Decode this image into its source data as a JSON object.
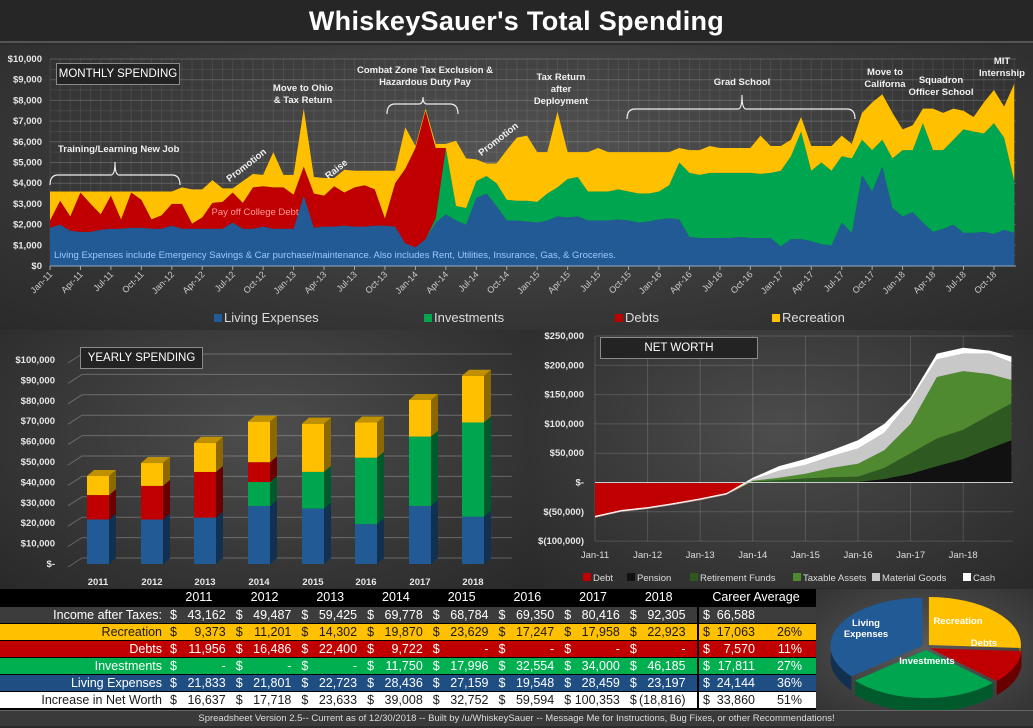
{
  "title": "WhiskeySauer's Total Spending",
  "colors": {
    "living": "#215a95",
    "investments": "#00a550",
    "debts": "#c00000",
    "recreation": "#ffc000"
  },
  "chart_data": [
    {
      "type": "area",
      "title": "MONTHLY SPENDING",
      "units": "thousands of dollars",
      "x_start": "Jan-11",
      "x_end": "Dec-18",
      "x_tick_labels": [
        "Jan-11",
        "Apr-11",
        "Jul-11",
        "Oct-11",
        "Jan-12",
        "Apr-12",
        "Jul-12",
        "Oct-12",
        "Jan-13",
        "Apr-13",
        "Jul-13",
        "Oct-13",
        "Jan-14",
        "Apr-14",
        "Jul-14",
        "Oct-14",
        "Jan-15",
        "Apr-15",
        "Jul-15",
        "Oct-15",
        "Jan-16",
        "Apr-16",
        "Jul-16",
        "Oct-16",
        "Jan-17",
        "Apr-17",
        "Jul-17",
        "Oct-17",
        "Jan-18",
        "Apr-18",
        "Jul-18",
        "Oct-18"
      ],
      "y_tick_labels": [
        "$0",
        "$1,000",
        "$2,000",
        "$3,000",
        "$4,000",
        "$5,000",
        "$6,000",
        "$7,000",
        "$8,000",
        "$9,000",
        "$10,000"
      ],
      "ylim": [
        0,
        10000
      ],
      "grid": true,
      "series": [
        {
          "name": "Living Expenses",
          "color": "#215a95",
          "values": [
            1.85,
            2.0,
            1.7,
            1.65,
            1.65,
            1.75,
            1.8,
            1.8,
            1.85,
            1.85,
            1.8,
            1.8,
            1.95,
            1.8,
            1.8,
            1.8,
            1.8,
            1.8,
            2.1,
            1.8,
            1.8,
            1.9,
            1.8,
            1.8,
            1.8,
            3.4,
            1.85,
            1.9,
            1.9,
            1.95,
            1.9,
            1.9,
            1.95,
            1.95,
            1.9,
            1.1,
            0.9,
            1.3,
            2.1,
            2.5,
            2.2,
            2.0,
            3.3,
            3.5,
            2.9,
            2.2,
            2.2,
            2.15,
            2.1,
            2.2,
            2.4,
            2.35,
            2.4,
            2.2,
            2.2,
            2.2,
            2.25,
            2.2,
            2.1,
            2.15,
            2.25,
            2.3,
            2.25,
            1.4,
            1.35,
            1.35,
            1.35,
            1.35,
            1.4,
            1.35,
            1.35,
            1.35,
            0.95,
            1.3,
            1.3,
            1.2,
            1.05,
            1.0,
            2.1,
            1.6,
            4.4,
            3.6,
            4.8,
            2.8,
            2.4,
            2.6,
            2.1,
            1.65,
            1.8,
            2.0,
            1.6,
            1.6,
            1.65,
            1.55,
            1.75,
            1.6
          ]
        },
        {
          "name": "Investments",
          "color": "#00a550",
          "values": [
            0,
            0,
            0,
            0,
            0,
            0,
            0,
            0,
            0,
            0,
            0,
            0,
            0,
            0,
            0,
            0,
            0,
            0,
            0,
            0,
            0,
            0,
            0,
            0,
            0,
            0,
            0,
            0,
            0,
            0,
            0,
            0,
            0,
            0,
            0,
            0,
            0,
            0,
            0.2,
            3.2,
            0.7,
            0.8,
            0.8,
            0.85,
            1.1,
            1.0,
            0.95,
            1.0,
            1.0,
            1.3,
            1.4,
            1.85,
            1.9,
            1.4,
            1.4,
            1.4,
            1.45,
            1.4,
            1.4,
            1.35,
            1.35,
            1.6,
            2.75,
            3.1,
            3.05,
            3.15,
            3.15,
            3.15,
            3.1,
            3.15,
            3.1,
            3.15,
            3.65,
            4.0,
            5.2,
            3.4,
            3.95,
            3.6,
            3.2,
            3.6,
            1.7,
            2.0,
            1.3,
            2.4,
            3.2,
            3.0,
            4.8,
            3.95,
            3.8,
            4.1,
            5.0,
            4.9,
            4.75,
            5.35,
            4.45,
            2.5
          ]
        },
        {
          "name": "Debts",
          "color": "#c00000",
          "values": [
            0.35,
            1.15,
            0.7,
            1.9,
            1.35,
            0.75,
            1.6,
            0.45,
            1.7,
            1.35,
            0.45,
            0.65,
            1.05,
            1.2,
            0.25,
            0.55,
            1.25,
            1.3,
            1.45,
            1.25,
            2.0,
            1.95,
            2.0,
            2.0,
            1.65,
            1.4,
            1.65,
            1.5,
            1.95,
            1.6,
            1.9,
            2.0,
            1.75,
            0.35,
            2.1,
            3.6,
            4.8,
            6.2,
            3.4,
            0,
            0,
            0,
            0,
            0,
            0,
            0,
            0,
            0,
            0,
            0,
            0,
            0,
            0,
            0,
            0,
            0,
            0,
            0,
            0,
            0,
            0,
            0,
            0,
            0,
            0,
            0,
            0,
            0,
            0,
            0,
            0,
            0,
            0,
            0,
            0,
            0,
            0,
            0,
            0,
            0,
            0,
            0,
            0,
            0,
            0,
            0,
            0,
            0,
            0,
            0,
            0,
            0,
            0,
            0,
            0,
            0
          ]
        },
        {
          "name": "Recreation",
          "color": "#ffc000",
          "values": [
            1.4,
            0.45,
            1.2,
            0.05,
            0.6,
            1.1,
            0.2,
            1.35,
            0.05,
            0.4,
            1.35,
            1.15,
            0.6,
            0.8,
            1.65,
            1.35,
            1.1,
            0.65,
            0.2,
            1.05,
            0.65,
            0.55,
            1.7,
            0.6,
            0.95,
            2.8,
            0.8,
            0.85,
            0.4,
            1.1,
            0.8,
            0.7,
            0.9,
            2.3,
            0.6,
            2.0,
            0.1,
            0.1,
            0.2,
            0.2,
            3.15,
            2.4,
            1.05,
            0.6,
            0.95,
            2.4,
            3.05,
            3.15,
            2.4,
            2.0,
            3.65,
            1.3,
            1.2,
            1.9,
            2.1,
            1.9,
            1.8,
            1.9,
            2.0,
            2.0,
            1.9,
            1.6,
            0.7,
            1.1,
            1.2,
            1.3,
            1.2,
            1.2,
            1.2,
            1.2,
            1.85,
            1.3,
            1.2,
            0.8,
            0.7,
            1.2,
            0.8,
            1.2,
            1.0,
            0.7,
            1.3,
            2.3,
            2.2,
            2.2,
            1.0,
            1.2,
            0.7,
            2.0,
            1.8,
            1.5,
            0.9,
            0.7,
            1.5,
            1.6,
            1.5,
            4.7
          ]
        }
      ],
      "annotations": {
        "training": "Training/Learning New Job",
        "promotion1": "Promotion",
        "college_debt": "Pay off College Debt",
        "ohio_1": "Move to Ohio",
        "ohio_2": "& Tax Return",
        "raise": "Raise",
        "combat_1": "Combat Zone Tax Exclusion &",
        "combat_2": "Hazardous Duty Pay",
        "promotion2": "Promotion",
        "taxret_1": "Tax Return",
        "taxret_2": "after",
        "taxret_3": "Deployment",
        "grad": "Grad School",
        "calif_1": "Move to",
        "calif_2": "Californa",
        "sos_1": "Squadron",
        "sos_2": "Officer School",
        "mit_1": "MIT",
        "mit_2": "Internship"
      },
      "note": "Living Expenses include Emergency Savings & Car purchase/maintenance.  Also includes Rent, Utilities, Insurance, Gas, & Groceries.",
      "legend": [
        "Living Expenses",
        "Investments",
        "Debts",
        "Recreation"
      ]
    },
    {
      "type": "bar",
      "title": "YEARLY SPENDING",
      "stacked": true,
      "categories": [
        "2011",
        "2012",
        "2013",
        "2014",
        "2015",
        "2016",
        "2017",
        "2018"
      ],
      "y_tick_labels": [
        "$-",
        "$10,000",
        "$20,000",
        "$30,000",
        "$40,000",
        "$50,000",
        "$60,000",
        "$70,000",
        "$80,000",
        "$90,000",
        "$100,000"
      ],
      "ylim": [
        0,
        100000
      ],
      "series": [
        {
          "name": "Living Expenses",
          "color": "#215a95",
          "values": [
            21833,
            21801,
            22723,
            28436,
            27159,
            19548,
            28459,
            23197
          ]
        },
        {
          "name": "Investments",
          "color": "#00a550",
          "values": [
            0,
            0,
            0,
            11750,
            17996,
            32554,
            34000,
            46185
          ]
        },
        {
          "name": "Debts",
          "color": "#c00000",
          "values": [
            11956,
            16486,
            22400,
            9722,
            0,
            0,
            0,
            0
          ]
        },
        {
          "name": "Recreation",
          "color": "#ffc000",
          "values": [
            9373,
            11201,
            14302,
            19870,
            23629,
            17247,
            17958,
            22923
          ]
        }
      ]
    },
    {
      "type": "area",
      "title": "NET WORTH",
      "units": "thousands of dollars",
      "x": [
        "Jan-11",
        "Jul-11",
        "Jan-12",
        "Jul-12",
        "Jan-13",
        "Jul-13",
        "Jan-14",
        "Jul-14",
        "Jan-15",
        "Jul-15",
        "Jan-16",
        "Jul-16",
        "Jan-17",
        "Jul-17",
        "Jan-18",
        "Jul-18",
        "Dec-18"
      ],
      "x_tick_labels": [
        "Jan-11",
        "Jan-12",
        "Jan-13",
        "Jan-14",
        "Jan-15",
        "Jan-16",
        "Jan-17",
        "Jan-18"
      ],
      "y_tick_labels": [
        "$(100,000)",
        "$(50,000)",
        "$-",
        "$50,000",
        "$100,000",
        "$150,000",
        "$200,000",
        "$250,000"
      ],
      "ylim": [
        -100000,
        250000
      ],
      "series": [
        {
          "name": "Debt",
          "color": "#c00000",
          "values": [
            -60,
            -50,
            -45,
            -38,
            -30,
            -21,
            0,
            0,
            0,
            0,
            0,
            0,
            0,
            0,
            0,
            0,
            0
          ]
        },
        {
          "name": "Pension",
          "color": "#111111",
          "values": [
            0,
            0,
            0,
            0,
            0,
            0,
            0,
            0,
            0,
            0,
            1,
            6,
            15,
            28,
            40,
            58,
            72
          ]
        },
        {
          "name": "Retirement Funds",
          "color": "#2e5a22",
          "values": [
            0,
            0,
            0,
            0,
            0,
            0,
            2,
            4,
            7,
            9,
            9,
            19,
            35,
            47,
            50,
            57,
            63
          ]
        },
        {
          "name": "Taxable Assets",
          "color": "#4f8a30",
          "values": [
            0,
            0,
            0,
            0,
            0,
            0,
            1,
            4,
            8,
            16,
            22,
            30,
            50,
            105,
            100,
            70,
            40
          ]
        },
        {
          "name": "Material Goods",
          "color": "#c8c8c8",
          "values": [
            1,
            1,
            1,
            1,
            1,
            1,
            2,
            12,
            15,
            20,
            26,
            30,
            40,
            30,
            30,
            35,
            30
          ]
        },
        {
          "name": "Cash",
          "color": "#ffffff",
          "values": [
            2,
            2,
            2,
            2,
            2,
            2,
            3,
            8,
            10,
            10,
            14,
            15,
            5,
            10,
            10,
            5,
            10
          ]
        }
      ]
    },
    {
      "type": "pie",
      "title": "Career Average",
      "slices": [
        {
          "name": "Recreation",
          "value": 26,
          "color": "#ffc000",
          "label": "Recreation"
        },
        {
          "name": "Debts",
          "value": 11,
          "color": "#c00000",
          "label": "Debts"
        },
        {
          "name": "Investments",
          "value": 27,
          "color": "#00a550",
          "label": "Investments"
        },
        {
          "name": "Living Expenses",
          "value": 36,
          "color": "#215a95",
          "label_1": "Living",
          "label_2": "Expenses"
        }
      ]
    }
  ],
  "table": {
    "headers": [
      "2011",
      "2012",
      "2013",
      "2014",
      "2015",
      "2016",
      "2017",
      "2018"
    ],
    "career_header": "Career Average",
    "currency": "$",
    "rows": [
      {
        "label": "Income after Taxes:",
        "values": [
          "43,162",
          "49,487",
          "59,425",
          "69,778",
          "68,784",
          "69,350",
          "80,416",
          "92,305"
        ],
        "avg": "66,588",
        "pct": "",
        "bg": "#3c3c3c",
        "fg": "#ffffff"
      },
      {
        "label": "Recreation",
        "values": [
          "9,373",
          "11,201",
          "14,302",
          "19,870",
          "23,629",
          "17,247",
          "17,958",
          "22,923"
        ],
        "avg": "17,063",
        "pct": "26%",
        "bg": "#ffc000",
        "fg": "#1a1a1a"
      },
      {
        "label": "Debts",
        "values": [
          "11,956",
          "16,486",
          "22,400",
          "9,722",
          "-",
          "-",
          "-",
          "-"
        ],
        "avg": "7,570",
        "pct": "11%",
        "bg": "#c00000",
        "fg": "#ffffff"
      },
      {
        "label": "Investments",
        "values": [
          "-",
          "-",
          "-",
          "11,750",
          "17,996",
          "32,554",
          "34,000",
          "46,185"
        ],
        "avg": "17,811",
        "pct": "27%",
        "bg": "#00b050",
        "fg": "#ffffff"
      },
      {
        "label": "Living Expenses",
        "values": [
          "21,833",
          "21,801",
          "22,723",
          "28,436",
          "27,159",
          "19,548",
          "28,459",
          "23,197"
        ],
        "avg": "24,144",
        "pct": "36%",
        "bg": "#1f4e82",
        "fg": "#ffffff"
      },
      {
        "label": "Increase in Net Worth",
        "values": [
          "16,637",
          "17,718",
          "23,633",
          "39,008",
          "32,752",
          "59,594",
          "100,353",
          "(18,816)"
        ],
        "avg": "33,860",
        "pct": "51%",
        "bg": "#ffffff",
        "fg": "#1a1a1a"
      }
    ]
  },
  "footer": "Spreadsheet Version 2.5-- Current as of 12/30/2018 -- Built by /u/WhiskeySauer -- Message Me for Instructions, Bug Fixes, or other Recommendations!"
}
